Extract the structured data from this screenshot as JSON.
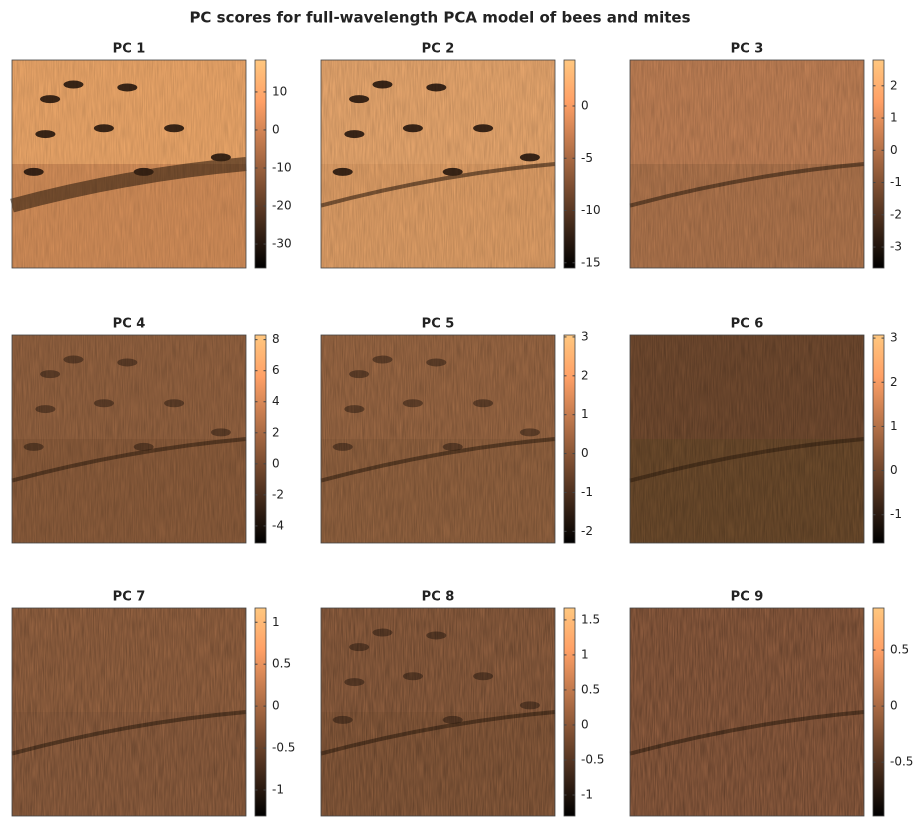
{
  "title": "PC scores for full-wavelength PCA model of bees and mites",
  "chart_data": [
    {
      "type": "heatmap",
      "title": "PC 1",
      "colormap": "copper",
      "clim": [
        -36.3,
        18.4
      ],
      "cticks": [
        10,
        0,
        -10,
        -20,
        -30
      ]
    },
    {
      "type": "heatmap",
      "title": "PC 2",
      "colormap": "copper",
      "clim": [
        -15.5,
        4.4
      ],
      "cticks": [
        0,
        -5,
        -10,
        -15
      ]
    },
    {
      "type": "heatmap",
      "title": "PC 3",
      "colormap": "copper",
      "clim": [
        -3.65,
        2.8
      ],
      "cticks": [
        2,
        1,
        0,
        -1,
        -2,
        -3
      ]
    },
    {
      "type": "heatmap",
      "title": "PC 4",
      "colormap": "copper",
      "clim": [
        -5.1,
        8.3
      ],
      "cticks": [
        8,
        6,
        4,
        2,
        0,
        -2,
        -4
      ]
    },
    {
      "type": "heatmap",
      "title": "PC 5",
      "colormap": "copper",
      "clim": [
        -2.3,
        3.05
      ],
      "cticks": [
        3,
        2,
        1,
        0,
        -1,
        -2
      ]
    },
    {
      "type": "heatmap",
      "title": "PC 6",
      "colormap": "copper",
      "clim": [
        -1.64,
        3.07
      ],
      "cticks": [
        3,
        2,
        1,
        0,
        -1
      ]
    },
    {
      "type": "heatmap",
      "title": "PC 7",
      "colormap": "copper",
      "clim": [
        -1.31,
        1.17
      ],
      "cticks": [
        1,
        0.5,
        0,
        -0.5,
        -1
      ]
    },
    {
      "type": "heatmap",
      "title": "PC 8",
      "colormap": "copper",
      "clim": [
        -1.3,
        1.67
      ],
      "cticks": [
        1.5,
        1,
        0.5,
        0,
        -0.5,
        -1
      ]
    },
    {
      "type": "heatmap",
      "title": "PC 9",
      "colormap": "copper",
      "clim": [
        -0.98,
        0.875
      ],
      "cticks": [
        0.5,
        0,
        -0.5
      ]
    }
  ]
}
